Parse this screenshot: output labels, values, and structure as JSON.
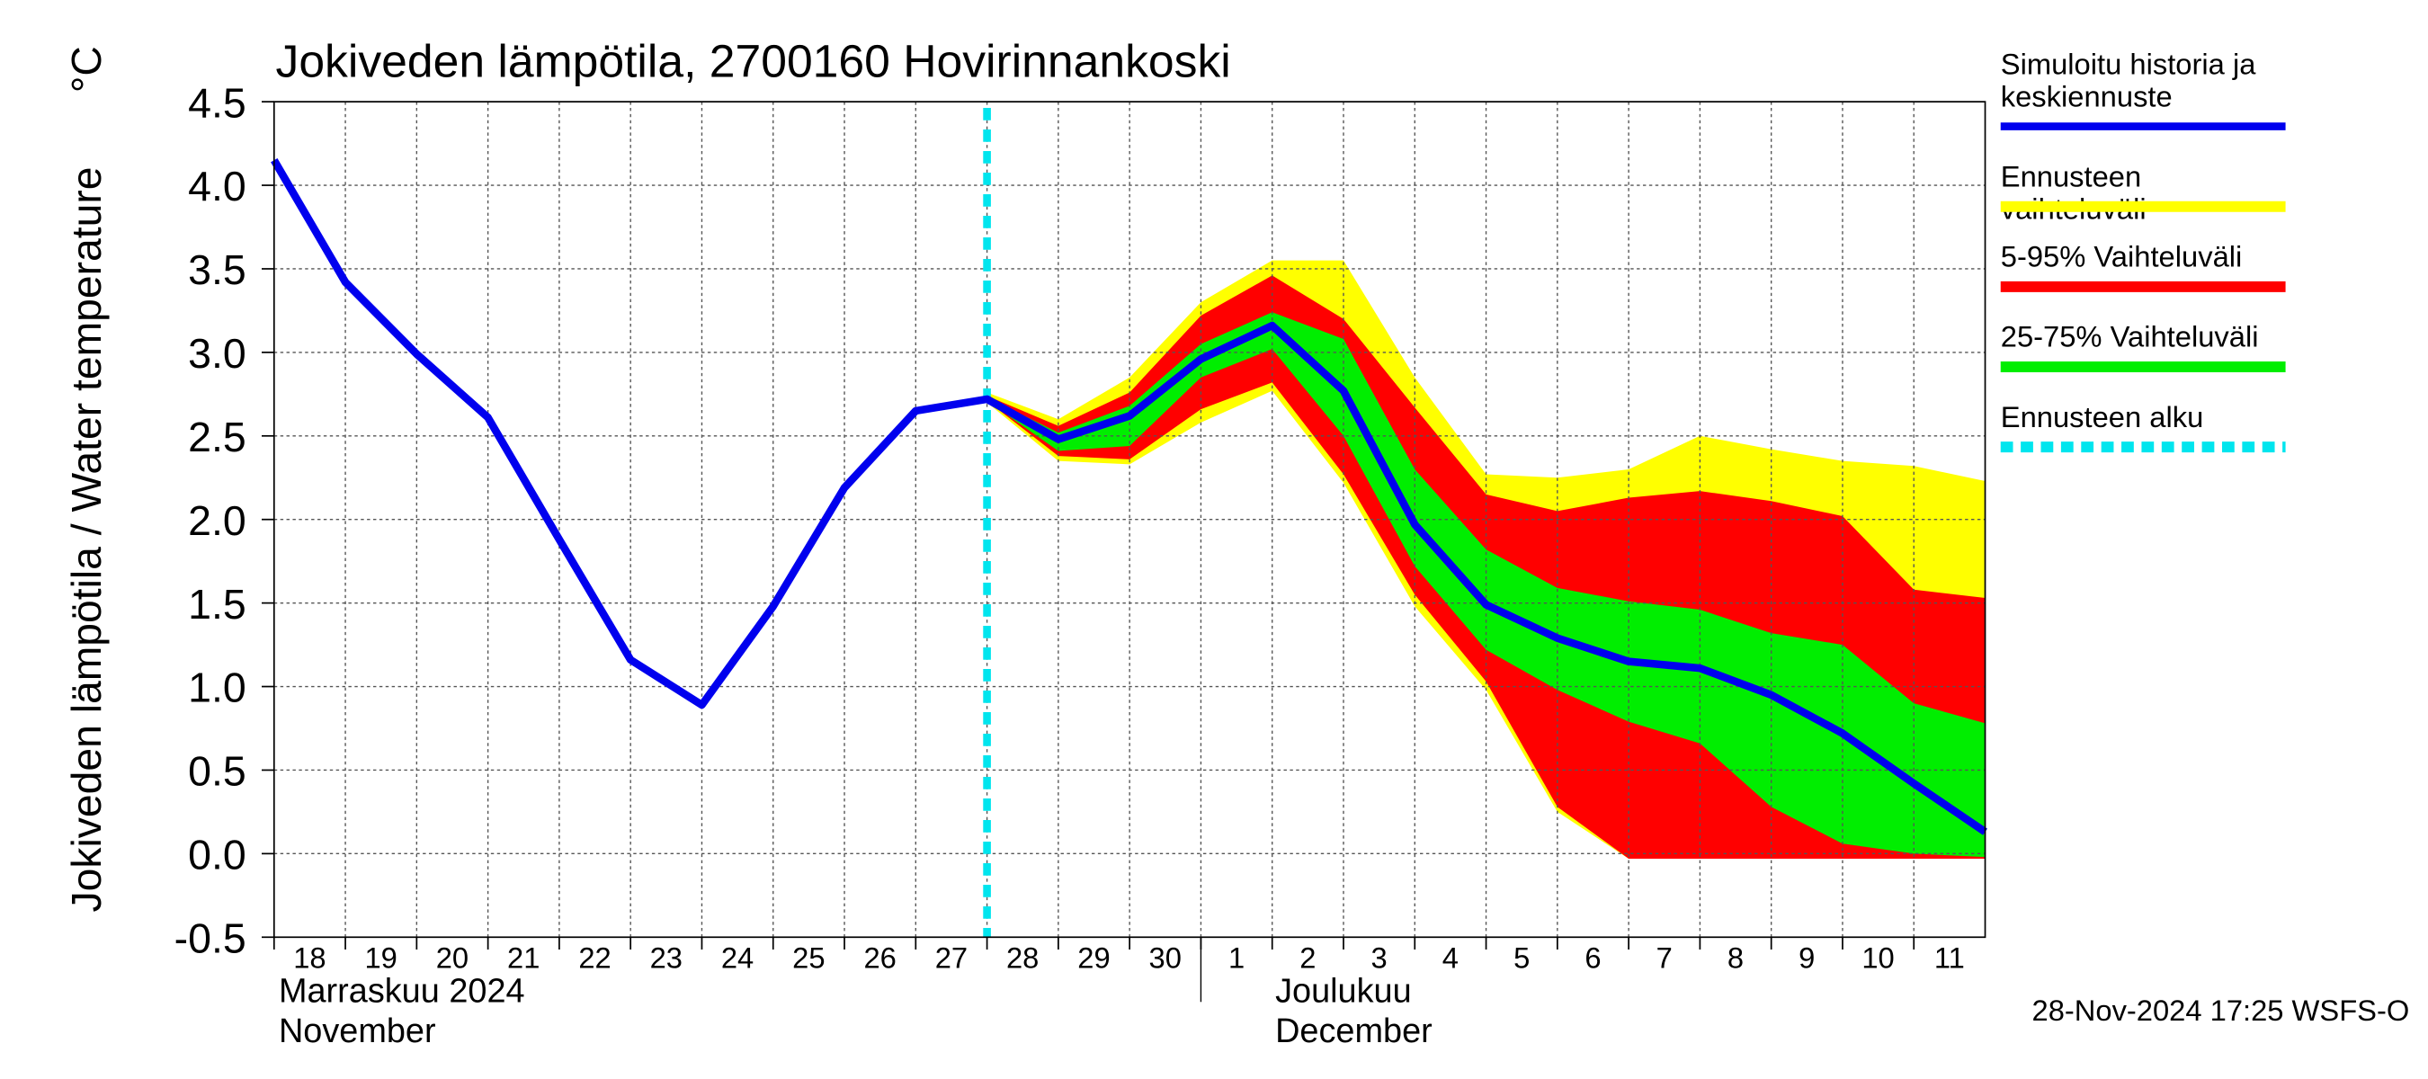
{
  "chart_data": {
    "type": "band-line",
    "title": "Jokiveden lämpötila, 2700160 Hovirinnankoski",
    "y_label": "Jokiveden lämpötila / Water temperature",
    "y_unit": "°C",
    "timestamp": "28-Nov-2024 17:25 WSFS-O",
    "xlim": [
      0,
      24
    ],
    "ylim": [
      -0.5,
      4.5
    ],
    "yticks": [
      -0.5,
      {
        "value": 0,
        "label": "0.0"
      },
      0.5,
      {
        "value": 1,
        "label": "1.0"
      },
      1.5,
      {
        "value": 2,
        "label": "2.0"
      },
      2.5,
      {
        "value": 3,
        "label": "3.0"
      },
      3.5,
      {
        "value": 4,
        "label": "4.0"
      },
      4.5
    ],
    "xticks": [
      {
        "value": 0,
        "label": "18"
      },
      {
        "value": 1,
        "label": "19"
      },
      {
        "value": 2,
        "label": "20"
      },
      {
        "value": 3,
        "label": "21"
      },
      {
        "value": 4,
        "label": "22"
      },
      {
        "value": 5,
        "label": "23"
      },
      {
        "value": 6,
        "label": "24"
      },
      {
        "value": 7,
        "label": "25"
      },
      {
        "value": 8,
        "label": "26"
      },
      {
        "value": 9,
        "label": "27"
      },
      {
        "value": 10,
        "label": "28"
      },
      {
        "value": 11,
        "label": "29"
      },
      {
        "value": 12,
        "label": "30"
      },
      {
        "value": 13,
        "label": "1"
      },
      {
        "value": 14,
        "label": "2"
      },
      {
        "value": 15,
        "label": "3"
      },
      {
        "value": 16,
        "label": "4"
      },
      {
        "value": 17,
        "label": "5"
      },
      {
        "value": 18,
        "label": "6"
      },
      {
        "value": 19,
        "label": "7"
      },
      {
        "value": 20,
        "label": "8"
      },
      {
        "value": 21,
        "label": "9"
      },
      {
        "value": 22,
        "label": "10"
      },
      {
        "value": 23,
        "label": "11"
      }
    ],
    "months": [
      {
        "value": 0,
        "label": "Marraskuu 2024",
        "label_en": "November"
      },
      {
        "value": 13,
        "label": "Joulukuu",
        "label_en": "December"
      }
    ],
    "grid": true,
    "legend": "right",
    "bands": [
      {
        "name": "Ennusteen vaihteluväli",
        "color": "#ffff00",
        "x": [
          10,
          11,
          12,
          13,
          14,
          15,
          16,
          17,
          18,
          19,
          20,
          21,
          22,
          23,
          24
        ],
        "upper": [
          2.76,
          2.6,
          2.85,
          3.3,
          3.55,
          3.55,
          2.85,
          2.27,
          2.25,
          2.3,
          2.5,
          2.42,
          2.35,
          2.32,
          2.23
        ],
        "lower": [
          2.7,
          2.35,
          2.33,
          2.58,
          2.77,
          2.22,
          1.48,
          0.98,
          0.25,
          -0.03,
          -0.03,
          -0.03,
          -0.03,
          -0.03,
          -0.03
        ]
      },
      {
        "name": "5-95% Vaihteluväli",
        "color": "#ff0000",
        "x": [
          10,
          11,
          12,
          13,
          14,
          15,
          16,
          17,
          18,
          19,
          20,
          21,
          22,
          23,
          24
        ],
        "upper": [
          2.74,
          2.56,
          2.76,
          3.22,
          3.46,
          3.2,
          2.67,
          2.15,
          2.05,
          2.13,
          2.17,
          2.11,
          2.02,
          1.58,
          1.53
        ],
        "lower": [
          2.71,
          2.38,
          2.36,
          2.66,
          2.82,
          2.27,
          1.55,
          1.03,
          0.28,
          -0.03,
          -0.03,
          -0.03,
          -0.03,
          -0.03,
          -0.03
        ]
      },
      {
        "name": "25-75% Vaihteluväli",
        "color": "#00ee00",
        "x": [
          10,
          11,
          12,
          13,
          14,
          15,
          16,
          17,
          18,
          19,
          20,
          21,
          22,
          23,
          24
        ],
        "upper": [
          2.73,
          2.52,
          2.68,
          3.05,
          3.24,
          3.08,
          2.3,
          1.82,
          1.59,
          1.51,
          1.46,
          1.32,
          1.25,
          0.9,
          0.78
        ],
        "lower": [
          2.71,
          2.41,
          2.44,
          2.85,
          3.02,
          2.5,
          1.72,
          1.22,
          0.98,
          0.79,
          0.66,
          0.28,
          0.06,
          0.0,
          -0.02
        ]
      }
    ],
    "series": [
      {
        "name": "Simuloitu historia ja keskiennuste",
        "color": "#0000ee",
        "x": [
          0,
          1,
          2,
          3,
          4,
          5,
          6,
          7,
          8,
          9,
          10,
          11,
          12,
          13,
          14,
          15,
          16,
          17,
          18,
          19,
          20,
          21,
          22,
          23,
          24
        ],
        "values": [
          4.15,
          3.42,
          2.99,
          2.61,
          1.88,
          1.16,
          0.89,
          1.48,
          2.19,
          2.65,
          2.72,
          2.48,
          2.62,
          2.96,
          3.16,
          2.77,
          1.97,
          1.49,
          1.29,
          1.15,
          1.11,
          0.95,
          0.72,
          0.42,
          0.13
        ]
      }
    ],
    "forecast_start": {
      "name": "Ennusteen alku",
      "color": "#00e5ee",
      "x": 10
    }
  }
}
